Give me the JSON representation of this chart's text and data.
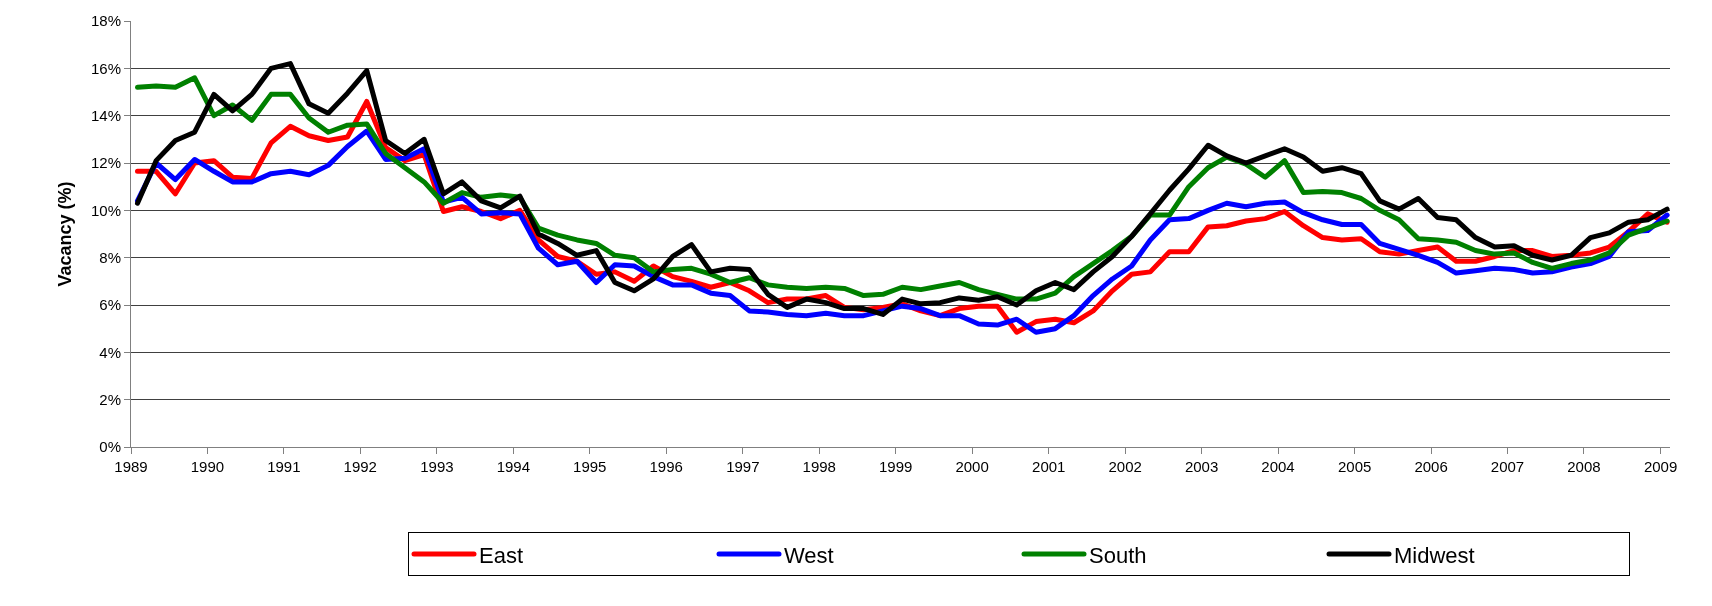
{
  "chart_data": {
    "type": "line",
    "ylabel": "Vacancy (%)",
    "x": [
      "1989-02",
      "1989-05",
      "1989-08",
      "1989-11",
      "1990-02",
      "1990-05",
      "1990-08",
      "1990-11",
      "1991-02",
      "1991-05",
      "1991-08",
      "1991-11",
      "1992-02",
      "1992-05",
      "1992-08",
      "1992-11",
      "1993-02",
      "1993-05",
      "1993-08",
      "1993-11",
      "1994-02",
      "1994-05",
      "1994-08",
      "1994-11",
      "1995-02",
      "1995-05",
      "1995-08",
      "1995-11",
      "1996-02",
      "1996-05",
      "1996-08",
      "1996-11",
      "1997-02",
      "1997-05",
      "1997-08",
      "1997-11",
      "1998-02",
      "1998-05",
      "1998-08",
      "1998-11",
      "1999-02",
      "1999-05",
      "1999-08",
      "1999-11",
      "2000-02",
      "2000-05",
      "2000-08",
      "2000-11",
      "2001-02",
      "2001-05",
      "2001-08",
      "2001-11",
      "2002-02",
      "2002-05",
      "2002-08",
      "2002-11",
      "2003-02",
      "2003-05",
      "2003-08",
      "2003-11",
      "2004-02",
      "2004-05",
      "2004-08",
      "2004-11",
      "2005-02",
      "2005-05",
      "2005-08",
      "2005-11",
      "2006-02",
      "2006-05",
      "2006-08",
      "2006-11",
      "2007-02",
      "2007-05",
      "2007-08",
      "2007-11",
      "2008-02",
      "2008-05",
      "2008-08",
      "2008-11",
      "2009-02"
    ],
    "series": [
      {
        "name": "East",
        "color": "#ff0000",
        "values": [
          11.65,
          11.65,
          10.7,
          12.0,
          12.1,
          11.4,
          11.35,
          12.85,
          13.55,
          13.15,
          12.95,
          13.1,
          14.6,
          12.65,
          12.1,
          12.35,
          9.95,
          10.15,
          9.95,
          9.65,
          10.0,
          8.75,
          8.05,
          7.85,
          7.3,
          7.4,
          7.0,
          7.65,
          7.2,
          7.0,
          6.75,
          6.95,
          6.6,
          6.1,
          6.25,
          6.25,
          6.4,
          5.9,
          5.8,
          5.9,
          6.05,
          5.75,
          5.55,
          5.85,
          5.95,
          5.95,
          4.85,
          5.3,
          5.4,
          5.25,
          5.75,
          6.6,
          7.3,
          7.4,
          8.25,
          8.25,
          9.3,
          9.35,
          9.55,
          9.65,
          9.95,
          9.35,
          8.85,
          8.75,
          8.8,
          8.25,
          8.15,
          8.3,
          8.45,
          7.85,
          7.85,
          8.05,
          8.3,
          8.3,
          8.05,
          8.1,
          8.2,
          8.45,
          9.1,
          9.85,
          9.5
        ]
      },
      {
        "name": "West",
        "color": "#0000ff",
        "values": [
          10.4,
          12.0,
          11.3,
          12.15,
          11.65,
          11.2,
          11.2,
          11.55,
          11.65,
          11.5,
          11.9,
          12.7,
          13.35,
          12.15,
          12.2,
          12.6,
          10.35,
          10.55,
          9.85,
          9.9,
          9.85,
          8.4,
          7.7,
          7.85,
          6.95,
          7.7,
          7.65,
          7.2,
          6.85,
          6.85,
          6.5,
          6.4,
          5.75,
          5.7,
          5.6,
          5.55,
          5.65,
          5.55,
          5.55,
          5.75,
          5.95,
          5.85,
          5.55,
          5.55,
          5.2,
          5.15,
          5.4,
          4.85,
          5.0,
          5.55,
          6.4,
          7.1,
          7.65,
          8.75,
          9.6,
          9.65,
          10.0,
          10.3,
          10.15,
          10.3,
          10.35,
          9.9,
          9.6,
          9.4,
          9.4,
          8.6,
          8.35,
          8.1,
          7.8,
          7.35,
          7.45,
          7.55,
          7.5,
          7.35,
          7.4,
          7.6,
          7.75,
          8.05,
          9.1,
          9.15,
          9.8
        ]
      },
      {
        "name": "South",
        "color": "#008000",
        "values": [
          15.2,
          15.25,
          15.2,
          15.6,
          14.0,
          14.45,
          13.8,
          14.9,
          14.9,
          13.9,
          13.3,
          13.6,
          13.65,
          12.4,
          11.8,
          11.2,
          10.3,
          10.75,
          10.55,
          10.65,
          10.55,
          9.25,
          8.95,
          8.75,
          8.6,
          8.1,
          8.0,
          7.4,
          7.5,
          7.55,
          7.3,
          6.95,
          7.15,
          6.85,
          6.75,
          6.7,
          6.75,
          6.7,
          6.4,
          6.45,
          6.75,
          6.65,
          6.8,
          6.95,
          6.65,
          6.45,
          6.25,
          6.25,
          6.5,
          7.2,
          7.75,
          8.3,
          8.9,
          9.8,
          9.8,
          11.0,
          11.8,
          12.25,
          11.95,
          11.4,
          12.1,
          10.75,
          10.8,
          10.75,
          10.5,
          10.0,
          9.6,
          8.8,
          8.75,
          8.65,
          8.3,
          8.15,
          8.2,
          7.8,
          7.55,
          7.75,
          7.9,
          8.2,
          8.95,
          9.25,
          9.55
        ]
      },
      {
        "name": "Midwest",
        "color": "#000000",
        "values": [
          10.3,
          12.1,
          12.95,
          13.3,
          14.9,
          14.2,
          14.9,
          16.0,
          16.2,
          14.5,
          14.1,
          14.95,
          15.9,
          12.95,
          12.4,
          13.0,
          10.7,
          11.2,
          10.4,
          10.1,
          10.6,
          9.0,
          8.6,
          8.1,
          8.3,
          6.95,
          6.6,
          7.1,
          8.05,
          8.55,
          7.4,
          7.55,
          7.5,
          6.45,
          5.9,
          6.25,
          6.1,
          5.85,
          5.85,
          5.6,
          6.25,
          6.05,
          6.1,
          6.3,
          6.2,
          6.35,
          6.0,
          6.6,
          6.95,
          6.65,
          7.4,
          8.05,
          8.9,
          9.85,
          10.85,
          11.75,
          12.75,
          12.3,
          12.0,
          12.3,
          12.6,
          12.25,
          11.65,
          11.8,
          11.55,
          10.4,
          10.05,
          10.5,
          9.7,
          9.6,
          8.85,
          8.45,
          8.5,
          8.1,
          7.9,
          8.1,
          8.85,
          9.05,
          9.5,
          9.6,
          10.05
        ]
      }
    ],
    "xlim": [
      "1989-01-01",
      "2009-02-15"
    ],
    "xticks": [
      {
        "value": "1989-01-01",
        "label": "1989"
      },
      {
        "value": "1990-01-01",
        "label": "1990"
      },
      {
        "value": "1991-01-01",
        "label": "1991"
      },
      {
        "value": "1992-01-01",
        "label": "1992"
      },
      {
        "value": "1993-01-01",
        "label": "1993"
      },
      {
        "value": "1994-01-01",
        "label": "1994"
      },
      {
        "value": "1995-01-01",
        "label": "1995"
      },
      {
        "value": "1996-01-01",
        "label": "1996"
      },
      {
        "value": "1997-01-01",
        "label": "1997"
      },
      {
        "value": "1998-01-01",
        "label": "1998"
      },
      {
        "value": "1999-01-01",
        "label": "1999"
      },
      {
        "value": "2000-01-01",
        "label": "2000"
      },
      {
        "value": "2001-01-01",
        "label": "2001"
      },
      {
        "value": "2002-01-01",
        "label": "2002"
      },
      {
        "value": "2003-01-01",
        "label": "2003"
      },
      {
        "value": "2004-01-01",
        "label": "2004"
      },
      {
        "value": "2005-01-01",
        "label": "2005"
      },
      {
        "value": "2006-01-01",
        "label": "2006"
      },
      {
        "value": "2007-01-01",
        "label": "2007"
      },
      {
        "value": "2008-01-01",
        "label": "2008"
      },
      {
        "value": "2009-01-01",
        "label": "2009"
      }
    ],
    "ylim": [
      0,
      18
    ],
    "yticks": [
      {
        "value": 0,
        "label": "0%"
      },
      {
        "value": 2,
        "label": "2%"
      },
      {
        "value": 4,
        "label": "4%"
      },
      {
        "value": 6,
        "label": "6%"
      },
      {
        "value": 8,
        "label": "8%"
      },
      {
        "value": 10,
        "label": "10%"
      },
      {
        "value": 12,
        "label": "12%"
      },
      {
        "value": 14,
        "label": "14%"
      },
      {
        "value": 16,
        "label": "16%"
      },
      {
        "value": 18,
        "label": "18%"
      }
    ],
    "grid": "y",
    "legend": "bottom",
    "marker": "none",
    "line_style": "solid"
  }
}
